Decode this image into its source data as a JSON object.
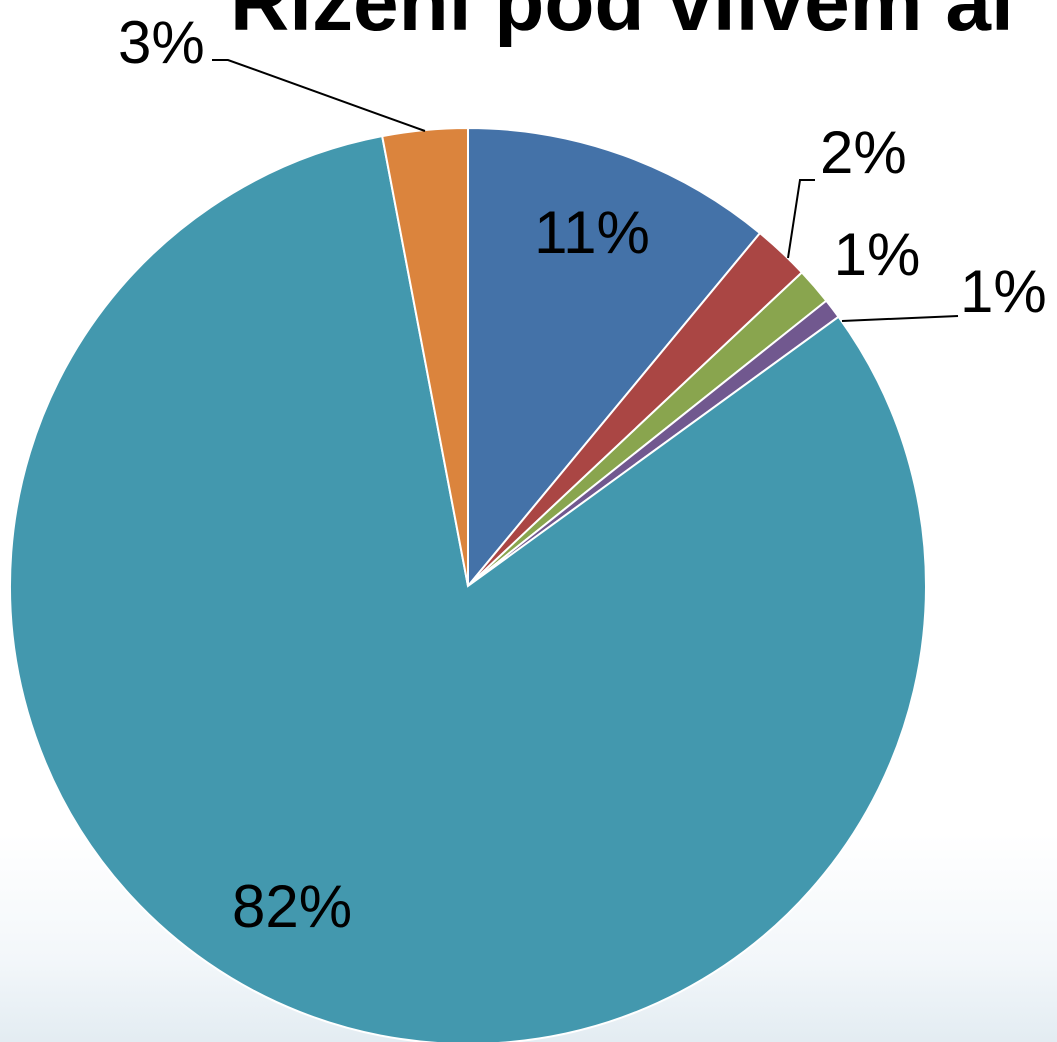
{
  "chart_data": {
    "type": "pie",
    "title": "Rizeni pod vlivem al",
    "slices": [
      {
        "label": "11%",
        "value": 11,
        "color": "#4472A8"
      },
      {
        "label": "2%",
        "value": 2,
        "color": "#AA4644"
      },
      {
        "label": "1%",
        "value": 1.3,
        "color": "#89A54E"
      },
      {
        "label": "1%",
        "value": 0.7,
        "color": "#71588F"
      },
      {
        "label": "82%",
        "value": 82,
        "color": "#4398AE"
      },
      {
        "label": "3%",
        "value": 3,
        "color": "#DB843D"
      }
    ],
    "start_angle_deg": 0,
    "direction": "clockwise"
  }
}
